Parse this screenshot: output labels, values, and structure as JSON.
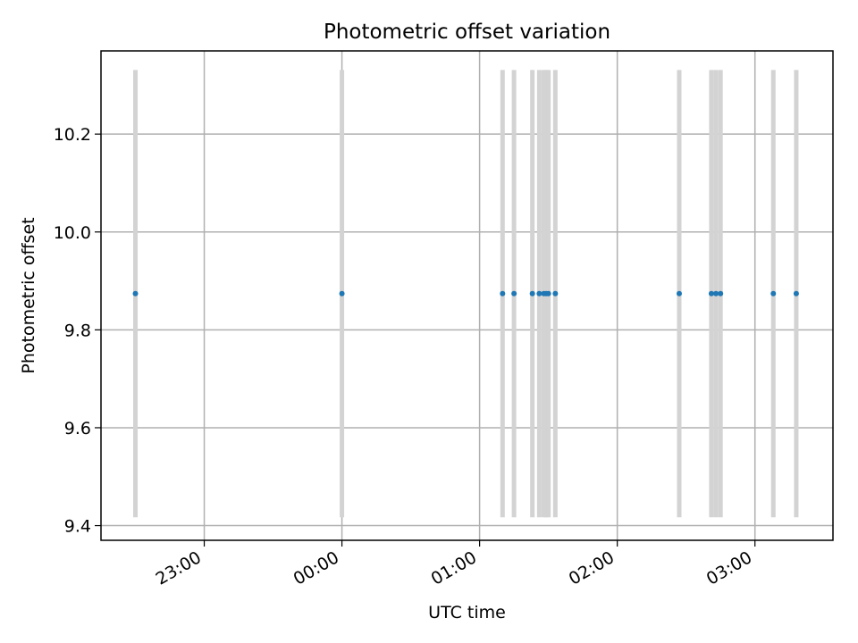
{
  "chart_data": {
    "type": "scatter",
    "title": "Photometric offset variation",
    "xlabel": "UTC time",
    "ylabel": "Photometric offset",
    "x_axis_type": "time",
    "xlim": [
      "22:15",
      "03:34"
    ],
    "ylim": [
      9.37,
      10.37
    ],
    "x_ticks": [
      "23:00",
      "00:00",
      "01:00",
      "02:00",
      "03:00"
    ],
    "y_ticks": [
      9.4,
      9.6,
      9.8,
      10.0,
      10.2
    ],
    "y_tick_labels": [
      "9.4",
      "9.6",
      "9.8",
      "10.0",
      "10.2"
    ],
    "grid": true,
    "series": [
      {
        "type": "scatter",
        "color": "#1f77b4",
        "x": [
          "22:30",
          "00:00",
          "01:10",
          "01:15",
          "01:23",
          "01:26",
          "01:28",
          "01:29",
          "01:30",
          "01:33",
          "02:27",
          "02:41",
          "02:43",
          "02:45",
          "03:08",
          "03:18"
        ],
        "y": [
          9.874,
          9.874,
          9.874,
          9.874,
          9.874,
          9.874,
          9.874,
          9.874,
          9.874,
          9.874,
          9.874,
          9.874,
          9.874,
          9.874,
          9.874,
          9.874
        ],
        "error_y": [
          0.457,
          0.457,
          0.457,
          0.457,
          0.457,
          0.457,
          0.457,
          0.457,
          0.457,
          0.457,
          0.457,
          0.457,
          0.457,
          0.457,
          0.457,
          0.457
        ],
        "error_color": "#d3d3d3"
      }
    ]
  }
}
